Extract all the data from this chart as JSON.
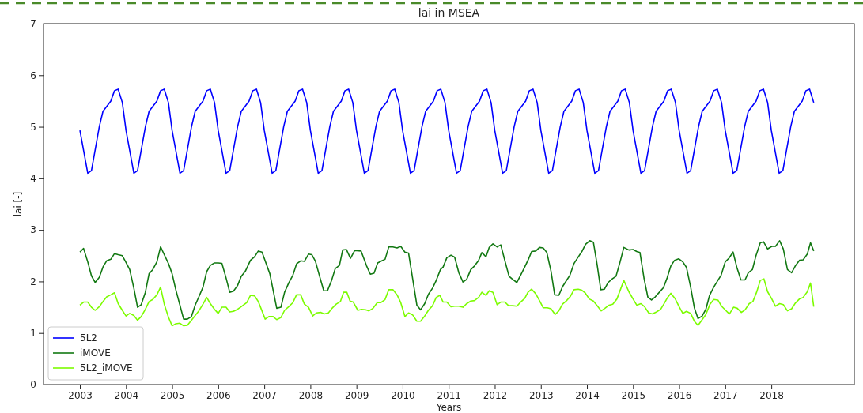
{
  "chart_data": {
    "type": "line",
    "title": "lai in MSEA",
    "xlabel": "Years",
    "ylabel": "lai [-]",
    "xlim": [
      2002.21,
      2019.8
    ],
    "ylim": [
      0,
      7
    ],
    "xticks": [
      2003,
      2004,
      2005,
      2006,
      2007,
      2008,
      2009,
      2010,
      2011,
      2012,
      2013,
      2014,
      2015,
      2016,
      2017,
      2018
    ],
    "yticks": [
      0,
      1,
      2,
      3,
      4,
      5,
      6,
      7
    ],
    "grid": false,
    "legend": "bottom left",
    "line_style": "solid",
    "marker": "none",
    "series": [
      {
        "name": "5L2",
        "color": "#0000ff",
        "x": [
          2003,
          2003.17,
          2003.25,
          2003.42,
          2003.5,
          2003.67,
          2003.75,
          2003.83,
          2003.92,
          2004,
          2004.17,
          2004.25,
          2004.42,
          2004.5,
          2004.67,
          2004.75,
          2004.83,
          2004.92,
          2005,
          2005.17,
          2005.25,
          2005.42,
          2005.5,
          2005.67,
          2005.75,
          2005.83,
          2005.92,
          2006,
          2006.17,
          2006.25,
          2006.42,
          2006.5,
          2006.67,
          2006.75,
          2006.83,
          2006.92,
          2007,
          2007.17,
          2007.25,
          2007.42,
          2007.5,
          2007.67,
          2007.75,
          2007.83,
          2007.92,
          2008,
          2008.17,
          2008.25,
          2008.42,
          2008.5,
          2008.67,
          2008.75,
          2008.83,
          2008.92,
          2009,
          2009.17,
          2009.25,
          2009.42,
          2009.5,
          2009.67,
          2009.75,
          2009.83,
          2009.92,
          2010,
          2010.17,
          2010.25,
          2010.42,
          2010.5,
          2010.67,
          2010.75,
          2010.83,
          2010.92,
          2011,
          2011.17,
          2011.25,
          2011.42,
          2011.5,
          2011.67,
          2011.75,
          2011.83,
          2011.92,
          2012,
          2012.17,
          2012.25,
          2012.42,
          2012.5,
          2012.67,
          2012.75,
          2012.83,
          2012.92,
          2013,
          2013.17,
          2013.25,
          2013.42,
          2013.5,
          2013.67,
          2013.75,
          2013.83,
          2013.92,
          2014,
          2014.17,
          2014.25,
          2014.42,
          2014.5,
          2014.67,
          2014.75,
          2014.83,
          2014.92,
          2015,
          2015.17,
          2015.25,
          2015.42,
          2015.5,
          2015.67,
          2015.75,
          2015.83,
          2015.92,
          2016,
          2016.17,
          2016.25,
          2016.42,
          2016.5,
          2016.67,
          2016.75,
          2016.83,
          2016.92,
          2017,
          2017.17,
          2017.25,
          2017.42,
          2017.5,
          2017.67,
          2017.75,
          2017.83,
          2017.92,
          2018,
          2018.17,
          2018.25,
          2018.42,
          2018.5,
          2018.67,
          2018.75,
          2018.83,
          2018.92
        ],
        "values": [
          4.93,
          4.1,
          4.15,
          5.0,
          5.3,
          5.5,
          5.7,
          5.73,
          5.47,
          4.93,
          4.1,
          4.15,
          5.0,
          5.3,
          5.5,
          5.7,
          5.73,
          5.47,
          4.93,
          4.1,
          4.15,
          5.0,
          5.3,
          5.5,
          5.7,
          5.73,
          5.47,
          4.93,
          4.1,
          4.15,
          5.0,
          5.3,
          5.5,
          5.7,
          5.73,
          5.47,
          4.93,
          4.1,
          4.15,
          5.0,
          5.3,
          5.5,
          5.7,
          5.73,
          5.47,
          4.93,
          4.1,
          4.15,
          5.0,
          5.3,
          5.5,
          5.7,
          5.73,
          5.47,
          4.93,
          4.1,
          4.15,
          5.0,
          5.3,
          5.5,
          5.7,
          5.73,
          5.47,
          4.93,
          4.1,
          4.15,
          5.0,
          5.3,
          5.5,
          5.7,
          5.73,
          5.47,
          4.93,
          4.1,
          4.15,
          5.0,
          5.3,
          5.5,
          5.7,
          5.73,
          5.47,
          4.93,
          4.1,
          4.15,
          5.0,
          5.3,
          5.5,
          5.7,
          5.73,
          5.47,
          4.93,
          4.1,
          4.15,
          5.0,
          5.3,
          5.5,
          5.7,
          5.73,
          5.47,
          4.93,
          4.1,
          4.15,
          5.0,
          5.3,
          5.5,
          5.7,
          5.73,
          5.47,
          4.93,
          4.1,
          4.15,
          5.0,
          5.3,
          5.5,
          5.7,
          5.73,
          5.47,
          4.93,
          4.1,
          4.15,
          5.0,
          5.3,
          5.5,
          5.7,
          5.73,
          5.47,
          4.93,
          4.1,
          4.15,
          5.0,
          5.3,
          5.5,
          5.7,
          5.73,
          5.47,
          4.93,
          4.1,
          4.15,
          5.0,
          5.3,
          5.5,
          5.7,
          5.73,
          5.47
        ]
      },
      {
        "name": "iMOVE",
        "color": "#127812",
        "x": [
          2003,
          2003.08,
          2003.17,
          2003.25,
          2003.33,
          2003.42,
          2003.5,
          2003.58,
          2003.67,
          2003.75,
          2003.83,
          2003.92,
          2004,
          2004.08,
          2004.17,
          2004.25,
          2004.33,
          2004.42,
          2004.5,
          2004.58,
          2004.67,
          2004.75,
          2004.83,
          2004.92,
          2005,
          2005.08,
          2005.17,
          2005.25,
          2005.33,
          2005.42,
          2005.5,
          2005.58,
          2005.67,
          2005.75,
          2005.83,
          2005.92,
          2006,
          2006.08,
          2006.17,
          2006.25,
          2006.33,
          2006.42,
          2006.5,
          2006.59,
          2006.7,
          2006.79,
          2006.87,
          2006.95,
          2007.12,
          2007.27,
          2007.36,
          2007.44,
          2007.53,
          2007.62,
          2007.7,
          2007.79,
          2007.87,
          2007.96,
          2008.03,
          2008.11,
          2008.2,
          2008.29,
          2008.37,
          2008.46,
          2008.54,
          2008.63,
          2008.7,
          2008.78,
          2008.87,
          2008.96,
          2009.1,
          2009.22,
          2009.3,
          2009.38,
          2009.46,
          2009.55,
          2009.62,
          2009.7,
          2009.79,
          2009.88,
          2009.96,
          2010.05,
          2010.13,
          2010.31,
          2010.39,
          2010.48,
          2010.56,
          2010.65,
          2010.73,
          2010.82,
          2010.88,
          2010.96,
          2011.05,
          2011.13,
          2011.22,
          2011.31,
          2011.39,
          2011.48,
          2011.56,
          2011.65,
          2011.72,
          2011.81,
          2011.88,
          2011.96,
          2012.05,
          2012.13,
          2012.22,
          2012.31,
          2012.39,
          2012.48,
          2012.56,
          2012.65,
          2012.73,
          2012.8,
          2012.89,
          2012.97,
          2013.05,
          2013.13,
          2013.22,
          2013.3,
          2013.39,
          2013.47,
          2013.55,
          2013.63,
          2013.72,
          2013.8,
          2013.89,
          2013.97,
          2014.06,
          2014.14,
          2014.22,
          2014.3,
          2014.38,
          2014.46,
          2014.55,
          2014.63,
          2014.71,
          2014.8,
          2014.91,
          2015,
          2015.08,
          2015.15,
          2015.24,
          2015.32,
          2015.4,
          2015.48,
          2015.57,
          2015.66,
          2015.74,
          2015.82,
          2015.9,
          2015.99,
          2016.08,
          2016.16,
          2016.25,
          2016.33,
          2016.41,
          2016.5,
          2016.58,
          2016.66,
          2016.75,
          2016.84,
          2016.91,
          2017,
          2017.08,
          2017.17,
          2017.25,
          2017.34,
          2017.43,
          2017.5,
          2017.59,
          2017.67,
          2017.76,
          2017.83,
          2017.92,
          2018.01,
          2018.09,
          2018.18,
          2018.26,
          2018.35,
          2018.44,
          2018.52,
          2018.61,
          2018.69,
          2018.78,
          2018.85,
          2018.92
        ],
        "values": [
          2.57,
          2.64,
          2.38,
          2.11,
          1.98,
          2.08,
          2.28,
          2.4,
          2.43,
          2.54,
          2.52,
          2.5,
          2.37,
          2.23,
          1.87,
          1.5,
          1.55,
          1.79,
          2.15,
          2.23,
          2.38,
          2.67,
          2.52,
          2.35,
          2.15,
          1.84,
          1.54,
          1.27,
          1.27,
          1.32,
          1.54,
          1.7,
          1.89,
          2.19,
          2.31,
          2.36,
          2.36,
          2.35,
          2.07,
          1.79,
          1.81,
          1.92,
          2.1,
          2.2,
          2.41,
          2.48,
          2.59,
          2.57,
          2.15,
          1.48,
          1.5,
          1.79,
          1.97,
          2.12,
          2.34,
          2.4,
          2.39,
          2.53,
          2.52,
          2.39,
          2.1,
          1.82,
          1.82,
          2.02,
          2.25,
          2.31,
          2.61,
          2.62,
          2.45,
          2.6,
          2.59,
          2.3,
          2.14,
          2.16,
          2.36,
          2.4,
          2.43,
          2.67,
          2.67,
          2.65,
          2.68,
          2.57,
          2.55,
          1.54,
          1.45,
          1.57,
          1.75,
          1.87,
          2.02,
          2.23,
          2.28,
          2.46,
          2.51,
          2.47,
          2.17,
          1.99,
          2.04,
          2.23,
          2.3,
          2.41,
          2.56,
          2.48,
          2.66,
          2.73,
          2.67,
          2.71,
          2.4,
          2.1,
          2.04,
          1.98,
          2.12,
          2.28,
          2.43,
          2.58,
          2.59,
          2.66,
          2.65,
          2.56,
          2.2,
          1.74,
          1.73,
          1.9,
          2.01,
          2.12,
          2.35,
          2.46,
          2.58,
          2.72,
          2.79,
          2.76,
          2.33,
          1.84,
          1.85,
          1.98,
          2.05,
          2.1,
          2.35,
          2.66,
          2.61,
          2.62,
          2.58,
          2.56,
          2.05,
          1.7,
          1.64,
          1.7,
          1.79,
          1.88,
          2.07,
          2.3,
          2.41,
          2.44,
          2.38,
          2.27,
          1.89,
          1.49,
          1.28,
          1.33,
          1.46,
          1.73,
          1.89,
          2.02,
          2.12,
          2.38,
          2.45,
          2.57,
          2.28,
          2.03,
          2.03,
          2.17,
          2.23,
          2.51,
          2.75,
          2.77,
          2.63,
          2.68,
          2.68,
          2.79,
          2.63,
          2.23,
          2.17,
          2.3,
          2.41,
          2.42,
          2.53,
          2.75,
          2.59
        ]
      },
      {
        "name": "5L2_iMOVE",
        "color": "#7cfc00",
        "x": [
          2003,
          2003.08,
          2003.17,
          2003.25,
          2003.33,
          2003.42,
          2003.5,
          2003.58,
          2003.67,
          2003.75,
          2003.83,
          2003.92,
          2004,
          2004.08,
          2004.17,
          2004.25,
          2004.33,
          2004.42,
          2004.5,
          2004.58,
          2004.67,
          2004.75,
          2004.83,
          2004.92,
          2005,
          2005.08,
          2005.17,
          2005.25,
          2005.33,
          2005.42,
          2005.5,
          2005.58,
          2005.67,
          2005.75,
          2005.83,
          2005.92,
          2006,
          2006.08,
          2006.17,
          2006.25,
          2006.33,
          2006.42,
          2006.5,
          2006.62,
          2006.7,
          2006.79,
          2006.87,
          2007.02,
          2007.1,
          2007.19,
          2007.27,
          2007.36,
          2007.44,
          2007.53,
          2007.62,
          2007.7,
          2007.79,
          2007.87,
          2007.96,
          2008.05,
          2008.13,
          2008.22,
          2008.3,
          2008.39,
          2008.47,
          2008.56,
          2008.65,
          2008.72,
          2008.79,
          2008.86,
          2008.93,
          2009.03,
          2009.11,
          2009.2,
          2009.27,
          2009.36,
          2009.45,
          2009.53,
          2009.62,
          2009.7,
          2009.79,
          2009.88,
          2009.96,
          2010.05,
          2010.13,
          2010.22,
          2010.31,
          2010.39,
          2010.48,
          2010.56,
          2010.65,
          2010.73,
          2010.81,
          2010.88,
          2010.96,
          2011.05,
          2011.13,
          2011.22,
          2011.31,
          2011.39,
          2011.48,
          2011.56,
          2011.65,
          2011.72,
          2011.81,
          2011.88,
          2011.96,
          2012.05,
          2012.13,
          2012.22,
          2012.3,
          2012.39,
          2012.48,
          2012.56,
          2012.65,
          2012.72,
          2012.8,
          2012.89,
          2012.97,
          2013.05,
          2013.14,
          2013.22,
          2013.31,
          2013.39,
          2013.47,
          2013.55,
          2013.64,
          2013.72,
          2013.81,
          2013.89,
          2013.96,
          2014.05,
          2014.14,
          2014.22,
          2014.31,
          2014.39,
          2014.48,
          2014.56,
          2014.65,
          2014.8,
          2014.91,
          2015,
          2015.08,
          2015.17,
          2015.25,
          2015.34,
          2015.42,
          2015.51,
          2015.6,
          2015.68,
          2015.75,
          2015.82,
          2015.91,
          2016,
          2016.08,
          2016.16,
          2016.25,
          2016.33,
          2016.41,
          2016.5,
          2016.58,
          2016.67,
          2016.75,
          2016.84,
          2016.92,
          2017.01,
          2017.09,
          2017.18,
          2017.26,
          2017.35,
          2017.43,
          2017.52,
          2017.6,
          2017.68,
          2017.76,
          2017.84,
          2017.92,
          2018.01,
          2018.09,
          2018.18,
          2018.26,
          2018.35,
          2018.44,
          2018.52,
          2018.61,
          2018.69,
          2018.78,
          2018.85,
          2018.92
        ],
        "values": [
          1.54,
          1.6,
          1.6,
          1.5,
          1.44,
          1.51,
          1.61,
          1.7,
          1.74,
          1.78,
          1.57,
          1.44,
          1.33,
          1.38,
          1.34,
          1.25,
          1.32,
          1.46,
          1.61,
          1.65,
          1.74,
          1.89,
          1.56,
          1.31,
          1.14,
          1.18,
          1.19,
          1.14,
          1.15,
          1.25,
          1.34,
          1.43,
          1.56,
          1.69,
          1.57,
          1.46,
          1.38,
          1.5,
          1.5,
          1.41,
          1.42,
          1.46,
          1.51,
          1.59,
          1.73,
          1.72,
          1.61,
          1.27,
          1.32,
          1.32,
          1.26,
          1.3,
          1.44,
          1.51,
          1.59,
          1.74,
          1.74,
          1.56,
          1.5,
          1.33,
          1.39,
          1.4,
          1.37,
          1.39,
          1.48,
          1.56,
          1.61,
          1.79,
          1.79,
          1.62,
          1.6,
          1.44,
          1.46,
          1.45,
          1.43,
          1.48,
          1.59,
          1.59,
          1.65,
          1.84,
          1.84,
          1.74,
          1.59,
          1.32,
          1.39,
          1.35,
          1.23,
          1.23,
          1.33,
          1.44,
          1.53,
          1.69,
          1.73,
          1.6,
          1.6,
          1.51,
          1.52,
          1.52,
          1.5,
          1.57,
          1.62,
          1.63,
          1.69,
          1.79,
          1.73,
          1.82,
          1.79,
          1.55,
          1.6,
          1.6,
          1.53,
          1.53,
          1.52,
          1.6,
          1.67,
          1.79,
          1.85,
          1.76,
          1.63,
          1.49,
          1.49,
          1.47,
          1.36,
          1.43,
          1.56,
          1.62,
          1.71,
          1.84,
          1.85,
          1.83,
          1.78,
          1.66,
          1.62,
          1.53,
          1.43,
          1.48,
          1.54,
          1.56,
          1.66,
          2.02,
          1.8,
          1.66,
          1.54,
          1.57,
          1.51,
          1.39,
          1.37,
          1.41,
          1.46,
          1.58,
          1.69,
          1.77,
          1.67,
          1.51,
          1.38,
          1.42,
          1.38,
          1.23,
          1.15,
          1.26,
          1.36,
          1.56,
          1.65,
          1.64,
          1.52,
          1.44,
          1.37,
          1.5,
          1.48,
          1.4,
          1.45,
          1.57,
          1.61,
          1.79,
          2.02,
          2.05,
          1.8,
          1.66,
          1.52,
          1.57,
          1.55,
          1.43,
          1.47,
          1.58,
          1.66,
          1.69,
          1.8,
          1.97,
          1.51
        ]
      }
    ]
  }
}
